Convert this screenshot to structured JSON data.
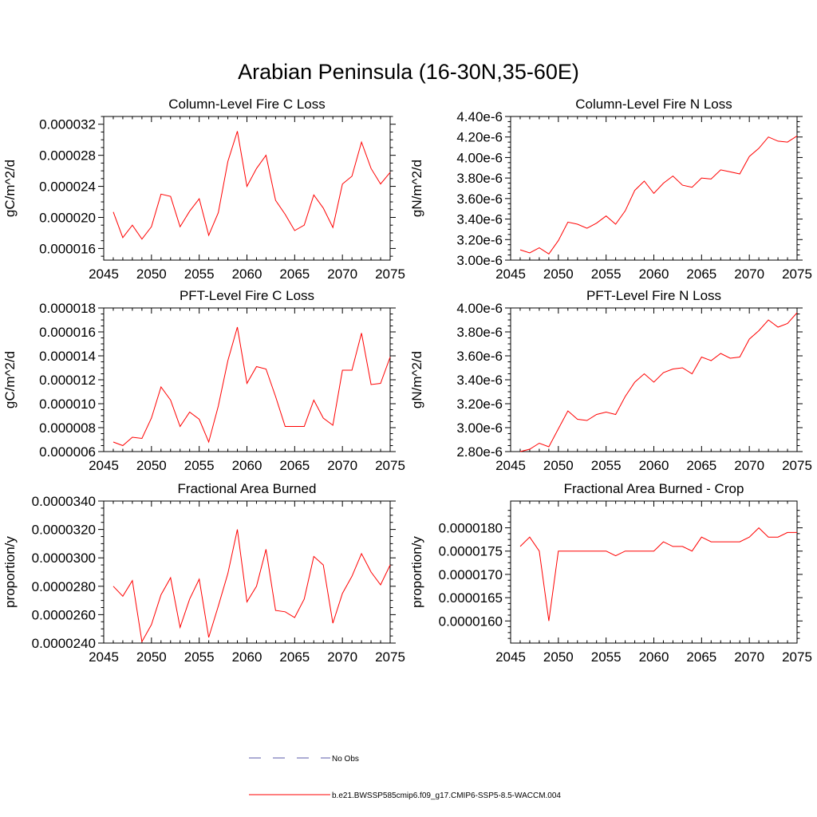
{
  "figure": {
    "title": "Arabian Peninsula (16-30N,35-60E)"
  },
  "chart_data": [
    {
      "type": "line",
      "title": "Column-Level Fire C Loss",
      "xlabel": "",
      "ylabel": "gC/m^2/d",
      "xlim": [
        2045,
        2075
      ],
      "ylim": [
        1.45e-05,
        3.3e-05
      ],
      "xticks": [
        2045,
        2050,
        2055,
        2060,
        2065,
        2070,
        2075
      ],
      "yticks": [
        1.6e-05,
        2e-05,
        2.4e-05,
        2.8e-05,
        3.2e-05
      ],
      "ytick_labels": [
        "0.000016",
        "0.000020",
        "0.000024",
        "0.000028",
        "0.000032"
      ],
      "series": [
        {
          "name": "b.e21.BWSSP585cmip6.f09_g17.CMIP6-SSP5-8.5-WACCM.004",
          "color": "#ff0000",
          "x": [
            2046,
            2047,
            2048,
            2049,
            2050,
            2051,
            2052,
            2053,
            2054,
            2055,
            2056,
            2057,
            2058,
            2059,
            2060,
            2061,
            2062,
            2063,
            2064,
            2065,
            2066,
            2067,
            2068,
            2069,
            2070,
            2071,
            2072,
            2073,
            2074,
            2075
          ],
          "values": [
            2.07e-05,
            1.74e-05,
            1.9e-05,
            1.72e-05,
            1.88e-05,
            2.3e-05,
            2.27e-05,
            1.88e-05,
            2.08e-05,
            2.24e-05,
            1.77e-05,
            2.06e-05,
            2.72e-05,
            3.11e-05,
            2.4e-05,
            2.63e-05,
            2.8e-05,
            2.22e-05,
            2.04e-05,
            1.83e-05,
            1.9e-05,
            2.29e-05,
            2.12e-05,
            1.87e-05,
            2.43e-05,
            2.53e-05,
            2.97e-05,
            2.63e-05,
            2.43e-05,
            2.58e-05
          ]
        }
      ]
    },
    {
      "type": "line",
      "title": "Column-Level Fire N Loss",
      "xlabel": "",
      "ylabel": "gN/m^2/d",
      "xlim": [
        2045,
        2075
      ],
      "ylim": [
        3e-06,
        4.4e-06
      ],
      "xticks": [
        2045,
        2050,
        2055,
        2060,
        2065,
        2070,
        2075
      ],
      "yticks": [
        3e-06,
        3.2e-06,
        3.4e-06,
        3.6e-06,
        3.8e-06,
        4e-06,
        4.2e-06,
        4.4e-06
      ],
      "ytick_labels": [
        "3.00e-6",
        "3.20e-6",
        "3.40e-6",
        "3.60e-6",
        "3.80e-6",
        "4.00e-6",
        "4.20e-6",
        "4.40e-6"
      ],
      "series": [
        {
          "name": "b.e21.BWSSP585cmip6.f09_g17.CMIP6-SSP5-8.5-WACCM.004",
          "color": "#ff0000",
          "x": [
            2046,
            2047,
            2048,
            2049,
            2050,
            2051,
            2052,
            2053,
            2054,
            2055,
            2056,
            2057,
            2058,
            2059,
            2060,
            2061,
            2062,
            2063,
            2064,
            2065,
            2066,
            2067,
            2068,
            2069,
            2070,
            2071,
            2072,
            2073,
            2074,
            2075
          ],
          "values": [
            3.1e-06,
            3.07e-06,
            3.12e-06,
            3.06e-06,
            3.19e-06,
            3.37e-06,
            3.35e-06,
            3.31e-06,
            3.36e-06,
            3.43e-06,
            3.35e-06,
            3.48e-06,
            3.68e-06,
            3.77e-06,
            3.65e-06,
            3.75e-06,
            3.82e-06,
            3.73e-06,
            3.71e-06,
            3.8e-06,
            3.79e-06,
            3.88e-06,
            3.86e-06,
            3.84e-06,
            4.01e-06,
            4.09e-06,
            4.2e-06,
            4.16e-06,
            4.15e-06,
            4.21e-06
          ]
        }
      ]
    },
    {
      "type": "line",
      "title": "PFT-Level Fire C Loss",
      "xlabel": "",
      "ylabel": "gC/m^2/d",
      "xlim": [
        2045,
        2075
      ],
      "ylim": [
        6e-06,
        1.8e-05
      ],
      "xticks": [
        2045,
        2050,
        2055,
        2060,
        2065,
        2070,
        2075
      ],
      "yticks": [
        6e-06,
        8e-06,
        1e-05,
        1.2e-05,
        1.4e-05,
        1.6e-05,
        1.8e-05
      ],
      "ytick_labels": [
        "0.000006",
        "0.000008",
        "0.000010",
        "0.000012",
        "0.000014",
        "0.000016",
        "0.000018"
      ],
      "series": [
        {
          "name": "b.e21.BWSSP585cmip6.f09_g17.CMIP6-SSP5-8.5-WACCM.004",
          "color": "#ff0000",
          "x": [
            2046,
            2047,
            2048,
            2049,
            2050,
            2051,
            2052,
            2053,
            2054,
            2055,
            2056,
            2057,
            2058,
            2059,
            2060,
            2061,
            2062,
            2063,
            2064,
            2065,
            2066,
            2067,
            2068,
            2069,
            2070,
            2071,
            2072,
            2073,
            2074,
            2075
          ],
          "values": [
            6.8e-06,
            6.5e-06,
            7.2e-06,
            7.1e-06,
            8.8e-06,
            1.14e-05,
            1.03e-05,
            8.1e-06,
            9.3e-06,
            8.7e-06,
            6.8e-06,
            9.8e-06,
            1.36e-05,
            1.64e-05,
            1.17e-05,
            1.31e-05,
            1.29e-05,
            1.06e-05,
            8.1e-06,
            8.1e-06,
            8.1e-06,
            1.03e-05,
            8.8e-06,
            8.2e-06,
            1.28e-05,
            1.28e-05,
            1.59e-05,
            1.16e-05,
            1.17e-05,
            1.39e-05
          ]
        }
      ]
    },
    {
      "type": "line",
      "title": "PFT-Level Fire N Loss",
      "xlabel": "",
      "ylabel": "gN/m^2/d",
      "xlim": [
        2045,
        2075
      ],
      "ylim": [
        2.8e-06,
        4e-06
      ],
      "xticks": [
        2045,
        2050,
        2055,
        2060,
        2065,
        2070,
        2075
      ],
      "yticks": [
        2.8e-06,
        3e-06,
        3.2e-06,
        3.4e-06,
        3.6e-06,
        3.8e-06,
        4e-06
      ],
      "ytick_labels": [
        "2.80e-6",
        "3.00e-6",
        "3.20e-6",
        "3.40e-6",
        "3.60e-6",
        "3.80e-6",
        "4.00e-6"
      ],
      "series": [
        {
          "name": "b.e21.BWSSP585cmip6.f09_g17.CMIP6-SSP5-8.5-WACCM.004",
          "color": "#ff0000",
          "x": [
            2046,
            2047,
            2048,
            2049,
            2050,
            2051,
            2052,
            2053,
            2054,
            2055,
            2056,
            2057,
            2058,
            2059,
            2060,
            2061,
            2062,
            2063,
            2064,
            2065,
            2066,
            2067,
            2068,
            2069,
            2070,
            2071,
            2072,
            2073,
            2074,
            2075
          ],
          "values": [
            2.8e-06,
            2.82e-06,
            2.87e-06,
            2.84e-06,
            2.99e-06,
            3.14e-06,
            3.07e-06,
            3.06e-06,
            3.11e-06,
            3.13e-06,
            3.11e-06,
            3.26e-06,
            3.38e-06,
            3.45e-06,
            3.38e-06,
            3.46e-06,
            3.49e-06,
            3.5e-06,
            3.45e-06,
            3.59e-06,
            3.56e-06,
            3.62e-06,
            3.58e-06,
            3.59e-06,
            3.74e-06,
            3.81e-06,
            3.9e-06,
            3.84e-06,
            3.87e-06,
            3.96e-06
          ]
        }
      ]
    },
    {
      "type": "line",
      "title": "Fractional Area Burned",
      "xlabel": "",
      "ylabel": "proportion/y",
      "xlim": [
        2045,
        2075
      ],
      "ylim": [
        2.4e-05,
        3.4e-05
      ],
      "xticks": [
        2045,
        2050,
        2055,
        2060,
        2065,
        2070,
        2075
      ],
      "yticks": [
        2.4e-05,
        2.6e-05,
        2.8e-05,
        3e-05,
        3.2e-05,
        3.4e-05
      ],
      "ytick_labels": [
        "0.0000240",
        "0.0000260",
        "0.0000280",
        "0.0000300",
        "0.0000320",
        "0.0000340"
      ],
      "series": [
        {
          "name": "b.e21.BWSSP585cmip6.f09_g17.CMIP6-SSP5-8.5-WACCM.004",
          "color": "#ff0000",
          "x": [
            2046,
            2047,
            2048,
            2049,
            2050,
            2051,
            2052,
            2053,
            2054,
            2055,
            2056,
            2057,
            2058,
            2059,
            2060,
            2061,
            2062,
            2063,
            2064,
            2065,
            2066,
            2067,
            2068,
            2069,
            2070,
            2071,
            2072,
            2073,
            2074,
            2075
          ],
          "values": [
            2.8e-05,
            2.73e-05,
            2.84e-05,
            2.41e-05,
            2.53e-05,
            2.74e-05,
            2.86e-05,
            2.51e-05,
            2.71e-05,
            2.85e-05,
            2.44e-05,
            2.66e-05,
            2.89e-05,
            3.2e-05,
            2.69e-05,
            2.8e-05,
            3.06e-05,
            2.63e-05,
            2.62e-05,
            2.58e-05,
            2.71e-05,
            3.01e-05,
            2.95e-05,
            2.54e-05,
            2.75e-05,
            2.87e-05,
            3.03e-05,
            2.9e-05,
            2.81e-05,
            2.95e-05
          ]
        }
      ]
    },
    {
      "type": "line",
      "title": "Fractional Area Burned - Crop",
      "xlabel": "",
      "ylabel": "proportion/y",
      "xlim": [
        2045,
        2075
      ],
      "ylim": [
        1.5525e-05,
        1.8575e-05
      ],
      "xticks": [
        2045,
        2050,
        2055,
        2060,
        2065,
        2070,
        2075
      ],
      "yticks": [
        1.6e-05,
        1.65e-05,
        1.7e-05,
        1.75e-05,
        1.8e-05
      ],
      "ytick_labels": [
        "0.0000160",
        "0.0000165",
        "0.0000170",
        "0.0000175",
        "0.0000180"
      ],
      "series": [
        {
          "name": "b.e21.BWSSP585cmip6.f09_g17.CMIP6-SSP5-8.5-WACCM.004",
          "color": "#ff0000",
          "x": [
            2046,
            2047,
            2048,
            2049,
            2050,
            2051,
            2052,
            2053,
            2054,
            2055,
            2056,
            2057,
            2058,
            2059,
            2060,
            2061,
            2062,
            2063,
            2064,
            2065,
            2066,
            2067,
            2068,
            2069,
            2070,
            2071,
            2072,
            2073,
            2074,
            2075
          ],
          "values": [
            1.76e-05,
            1.78e-05,
            1.75e-05,
            1.6e-05,
            1.75e-05,
            1.75e-05,
            1.75e-05,
            1.75e-05,
            1.75e-05,
            1.75e-05,
            1.74e-05,
            1.75e-05,
            1.75e-05,
            1.75e-05,
            1.75e-05,
            1.77e-05,
            1.76e-05,
            1.76e-05,
            1.75e-05,
            1.78e-05,
            1.77e-05,
            1.77e-05,
            1.77e-05,
            1.77e-05,
            1.78e-05,
            1.8e-05,
            1.78e-05,
            1.78e-05,
            1.79e-05,
            1.79e-05
          ]
        }
      ]
    }
  ],
  "legend": {
    "entries": [
      {
        "label": "No Obs",
        "style": "dashed",
        "color": "#5a5aa8"
      },
      {
        "label": "b.e21.BWSSP585cmip6.f09_g17.CMIP6-SSP5-8.5-WACCM.004",
        "style": "solid",
        "color": "#ff0000"
      }
    ]
  }
}
